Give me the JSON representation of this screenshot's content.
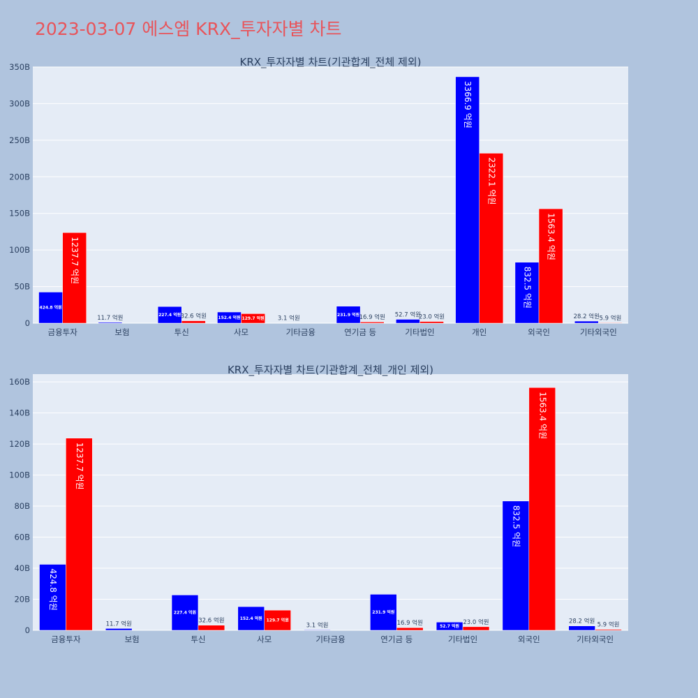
{
  "title": "2023-03-07 에스엠 KRX_투자자별 차트",
  "colors": {
    "background": "#b0c4de",
    "plot_bg": "#e5ecf6",
    "title": "#e8545a",
    "buy": "#0000ff",
    "sell": "#ff0000"
  },
  "chart_data": [
    {
      "type": "bar",
      "title": "KRX_투자자별 차트(기관합계_전체 제외)",
      "categories": [
        "금융투자",
        "보험",
        "투신",
        "사모",
        "기타금융",
        "연기금 등",
        "기타법인",
        "개인",
        "외국인",
        "기타외국인"
      ],
      "series": [
        {
          "color": "#0000ff",
          "values": [
            42.48,
            1.17,
            22.74,
            15.24,
            0.31,
            23.19,
            5.27,
            336.69,
            83.25,
            2.82
          ],
          "labels": [
            "424.8 억원",
            "11.7 억원",
            "227.4 억원",
            "152.4 억원",
            "3.1 억원",
            "231.9 억원",
            "52.7 억원",
            "3366.9 억원",
            "832.5 억원",
            "28.2 억원"
          ]
        },
        {
          "color": "#ff0000",
          "values": [
            123.77,
            0,
            3.26,
            12.97,
            0,
            1.69,
            2.3,
            232.21,
            156.34,
            0.59
          ],
          "labels": [
            "1237.7 억원",
            "",
            "32.6 억원",
            "129.7 억원",
            "",
            "16.9 억원",
            "23.0 억원",
            "2322.1 억원",
            "1563.4 억원",
            "5.9 억원"
          ]
        }
      ],
      "ylim": [
        0,
        350
      ],
      "yticks": [
        0,
        50,
        100,
        150,
        200,
        250,
        300,
        350
      ],
      "ytick_labels": [
        "0",
        "50B",
        "100B",
        "150B",
        "200B",
        "250B",
        "300B",
        "350B"
      ],
      "grid": true
    },
    {
      "type": "bar",
      "title": "KRX_투자자별 차트(기관합계_전체_개인 제외)",
      "categories": [
        "금융투자",
        "보험",
        "투신",
        "사모",
        "기타금융",
        "연기금 등",
        "기타법인",
        "외국인",
        "기타외국인"
      ],
      "series": [
        {
          "color": "#0000ff",
          "values": [
            42.48,
            1.17,
            22.74,
            15.24,
            0.31,
            23.19,
            5.27,
            83.25,
            2.82
          ],
          "labels": [
            "424.8 억원",
            "11.7 억원",
            "227.4 억원",
            "152.4 억원",
            "3.1 억원",
            "231.9 억원",
            "52.7 억원",
            "832.5 억원",
            "28.2 억원"
          ]
        },
        {
          "color": "#ff0000",
          "values": [
            123.77,
            0,
            3.26,
            12.97,
            0,
            1.69,
            2.3,
            156.34,
            0.59
          ],
          "labels": [
            "1237.7 억원",
            "",
            "32.6 억원",
            "129.7 억원",
            "",
            "16.9 억원",
            "23.0 억원",
            "1563.4 억원",
            "5.9 억원"
          ]
        }
      ],
      "ylim": [
        0,
        165
      ],
      "yticks": [
        0,
        20,
        40,
        60,
        80,
        100,
        120,
        140,
        160
      ],
      "ytick_labels": [
        "0",
        "20B",
        "40B",
        "60B",
        "80B",
        "100B",
        "120B",
        "140B",
        "160B"
      ],
      "grid": true
    }
  ]
}
